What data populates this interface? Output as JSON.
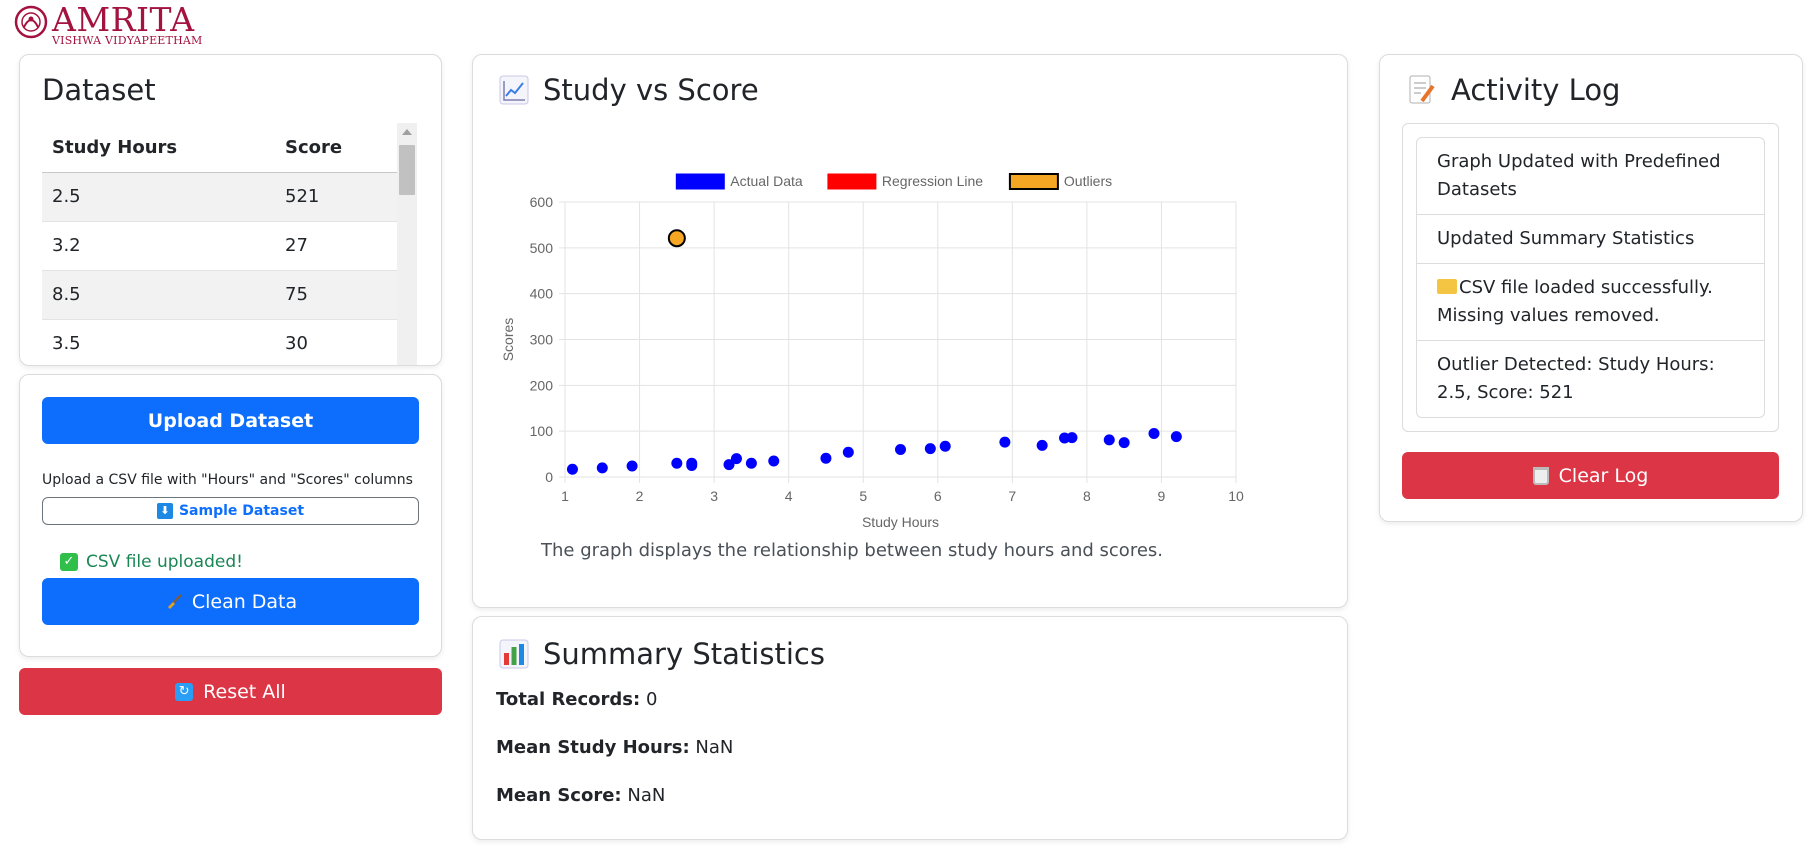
{
  "logo": {
    "title": "AMRITA",
    "subtitle": "VISHWA VIDYAPEETHAM"
  },
  "dataset": {
    "title": "Dataset",
    "columns": [
      "Study Hours",
      "Score"
    ],
    "rows": [
      [
        "2.5",
        "521"
      ],
      [
        "3.2",
        "27"
      ],
      [
        "8.5",
        "75"
      ],
      [
        "3.5",
        "30"
      ]
    ]
  },
  "upload": {
    "button_label": "Upload Dataset",
    "hint": "Upload a CSV file with \"Hours\" and \"Scores\" columns",
    "sample_label": "Sample Dataset",
    "status": "CSV file uploaded!",
    "clean_label": "Clean Data",
    "reset_label": "Reset All"
  },
  "chart_card": {
    "title": "Study vs Score",
    "caption": "The graph displays the relationship between study hours and scores."
  },
  "chart_data": {
    "type": "scatter",
    "xlabel": "Study Hours",
    "ylabel": "Scores",
    "xlim": [
      1,
      10
    ],
    "ylim": [
      0,
      600
    ],
    "x_ticks": [
      1,
      2,
      3,
      4,
      5,
      6,
      7,
      8,
      9,
      10
    ],
    "y_ticks": [
      0,
      100,
      200,
      300,
      400,
      500,
      600
    ],
    "grid": true,
    "legend_position": "top",
    "series": [
      {
        "name": "Actual Data",
        "color": "#0000ff",
        "points": [
          [
            1.1,
            17
          ],
          [
            1.5,
            20
          ],
          [
            1.9,
            24
          ],
          [
            2.5,
            30
          ],
          [
            2.7,
            25
          ],
          [
            2.7,
            30
          ],
          [
            3.2,
            27
          ],
          [
            3.3,
            40
          ],
          [
            3.5,
            30
          ],
          [
            3.8,
            35
          ],
          [
            4.5,
            41
          ],
          [
            4.8,
            54
          ],
          [
            5.5,
            60
          ],
          [
            5.9,
            62
          ],
          [
            6.1,
            67
          ],
          [
            6.9,
            76
          ],
          [
            7.4,
            69
          ],
          [
            7.7,
            85
          ],
          [
            7.8,
            86
          ],
          [
            8.3,
            81
          ],
          [
            8.5,
            75
          ],
          [
            8.9,
            95
          ],
          [
            9.2,
            88
          ]
        ]
      },
      {
        "name": "Regression Line",
        "color": "#ff0000",
        "points": []
      },
      {
        "name": "Outliers",
        "color": "#f5a623",
        "points": [
          [
            2.5,
            521
          ]
        ]
      }
    ]
  },
  "summary": {
    "title": "Summary Statistics",
    "total_label": "Total Records:",
    "total_value": "0",
    "mean_hours_label": "Mean Study Hours:",
    "mean_hours_value": "NaN",
    "mean_score_label": "Mean Score:",
    "mean_score_value": "NaN"
  },
  "log": {
    "title": "Activity Log",
    "entries": [
      "Graph Updated with Predefined Datasets",
      "Updated Summary Statistics",
      "CSV file loaded successfully. Missing values removed.",
      "Outlier Detected: Study Hours: 2.5, Score: 521"
    ],
    "clear_label": "Clear Log"
  }
}
